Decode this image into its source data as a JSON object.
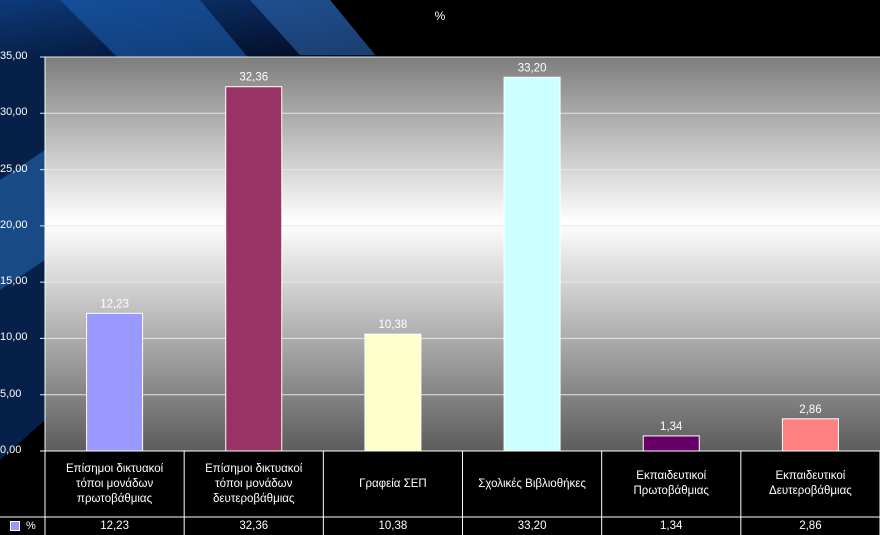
{
  "chart_data": {
    "type": "bar",
    "title": "%",
    "categories": [
      "Επίσημοι δικτυακοί τόποι μονάδων πρωτοβάθμιας",
      "Επίσημοι δικτυακοί τόποι μονάδων δευτεροβάθμιας",
      "Γραφεία ΣΕΠ",
      "Σχολικές Βιβλιοθήκες",
      "Εκπαιδευτικοί Πρωτοβάθμιας",
      "Εκπαιδευτικοί Δευτεροβάθμιας"
    ],
    "series": [
      {
        "name": "%",
        "values": [
          12.23,
          32.36,
          10.38,
          33.2,
          1.34,
          2.86
        ]
      }
    ],
    "value_labels": [
      "12,23",
      "32,36",
      "10,38",
      "33,20",
      "1,34",
      "2,86"
    ],
    "bar_colors": [
      "#9999ff",
      "#993366",
      "#ffffcc",
      "#ccffff",
      "#660066",
      "#ff8080"
    ],
    "y_ticks": [
      "0,00",
      "5,00",
      "10,00",
      "15,00",
      "20,00",
      "25,00",
      "30,00",
      "35,00"
    ],
    "ylim": [
      0,
      35
    ],
    "grid": true,
    "legend": "bottom-left in data table",
    "data_table": true
  }
}
